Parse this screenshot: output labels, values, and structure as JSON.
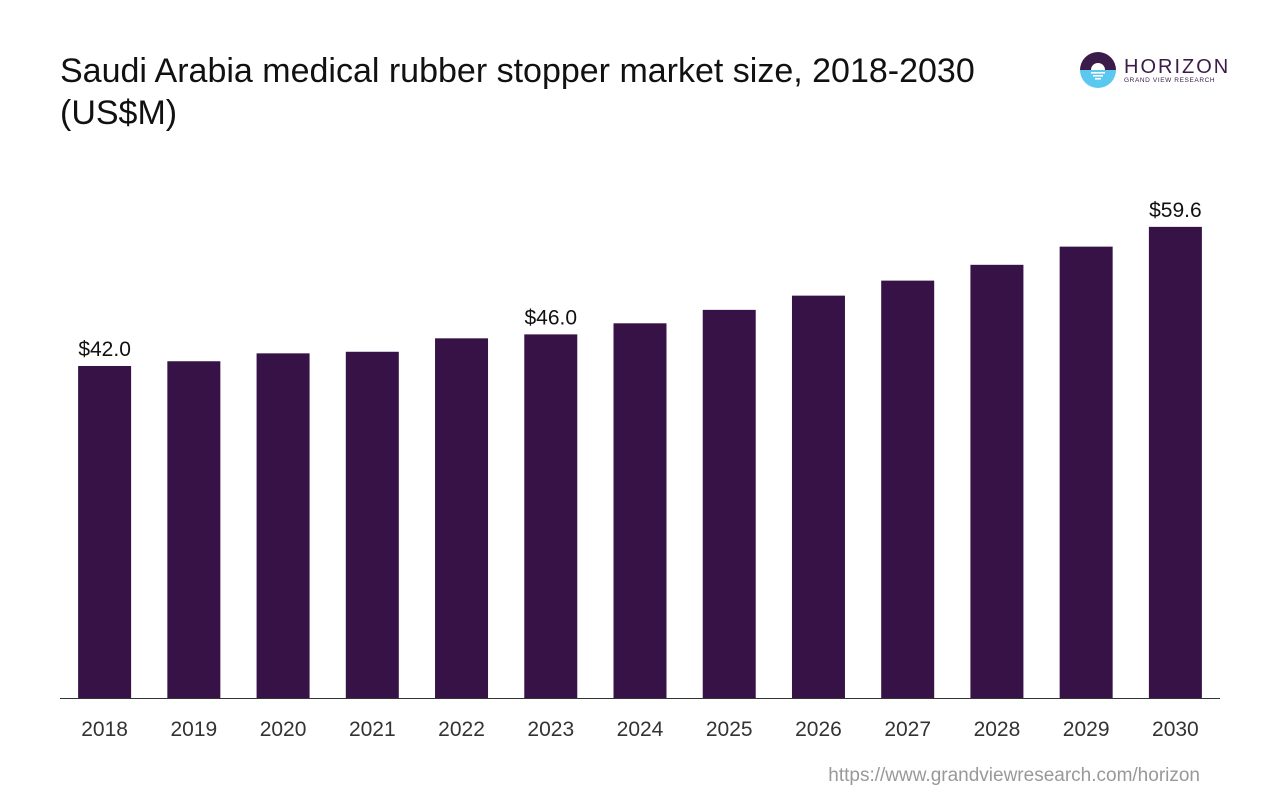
{
  "title": "Saudi Arabia medical rubber stopper market size, 2018-2030 (US$M)",
  "logo": {
    "main": "HORIZON",
    "sub": "GRAND VIEW RESEARCH"
  },
  "source": "https://www.grandviewresearch.com/horizon",
  "colors": {
    "bar": "#371246",
    "logo_top": "#3a1b4a",
    "logo_bottom": "#5bc8f0"
  },
  "chart_data": {
    "type": "bar",
    "title": "Saudi Arabia medical rubber stopper market size, 2018-2030 (US$M)",
    "categories": [
      "2018",
      "2019",
      "2020",
      "2021",
      "2022",
      "2023",
      "2024",
      "2025",
      "2026",
      "2027",
      "2028",
      "2029",
      "2030"
    ],
    "values": [
      42.0,
      42.6,
      43.6,
      43.8,
      45.5,
      46.0,
      47.4,
      49.1,
      50.9,
      52.8,
      54.8,
      57.1,
      59.6
    ],
    "data_labels": {
      "0": "$42.0",
      "5": "$46.0",
      "12": "$59.6"
    },
    "xlabel": "",
    "ylabel": "",
    "ylim": [
      0,
      88.3
    ],
    "grid": false
  }
}
